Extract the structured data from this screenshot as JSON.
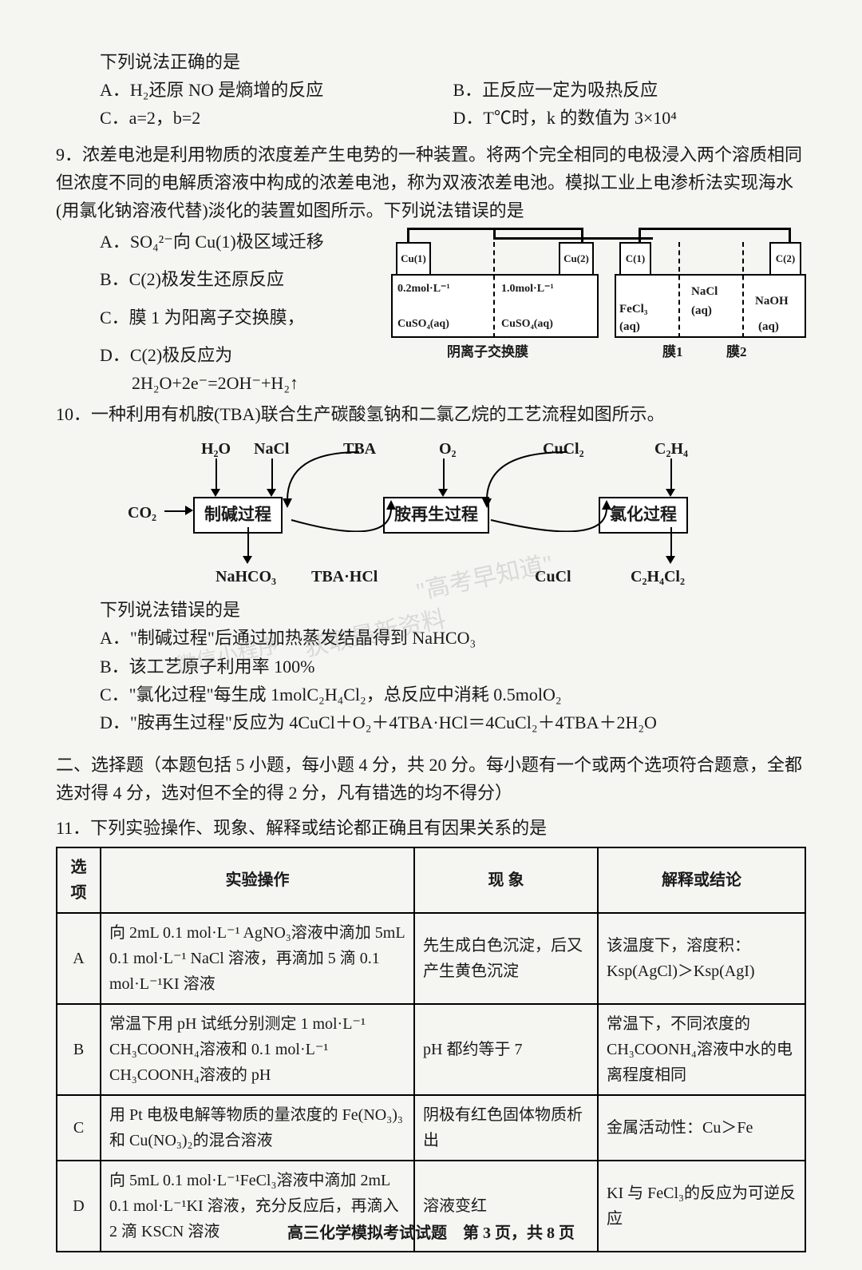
{
  "pre": {
    "line1": "下列说法正确的是",
    "optA": "A．H₂还原 NO 是熵增的反应",
    "optB": "B．正反应一定为吸热反应",
    "optC": "C．a=2，b=2",
    "optD": "D．T℃时，k 的数值为 3×10⁴"
  },
  "q9": {
    "stem": "9．浓差电池是利用物质的浓度差产生电势的一种装置。将两个完全相同的电极浸入两个溶质相同但浓度不同的电解质溶液中构成的浓差电池，称为双液浓差电池。模拟工业上电渗析法实现海水(用氯化钠溶液代替)淡化的装置如图所示。下列说法错误的是",
    "optA": "A．SO₄²⁻向 Cu(1)极区域迁移",
    "optB": "B．C(2)极发生还原反应",
    "optC": "C．膜 1 为阳离子交换膜，",
    "optD": "D．C(2)极反应为",
    "optD2": "2H₂O+2e⁻=2OH⁻+H₂↑",
    "diagram": {
      "cu1": "Cu(1)",
      "cu2": "Cu(2)",
      "c1": "C(1)",
      "c2": "C(2)",
      "conc1": "0.2mol·L⁻¹",
      "conc2": "1.0mol·L⁻¹",
      "sol1": "CuSO₄(aq)",
      "sol2": "CuSO₄(aq)",
      "fecl3": "FeCl₃",
      "aq1": "(aq)",
      "nacl": "NaCl",
      "aq2": "(aq)",
      "naoh": "NaOH",
      "aq3": "(aq)",
      "anion_mem": "阴离子交换膜",
      "mem1": "膜1",
      "mem2": "膜2"
    }
  },
  "q10": {
    "stem": "10．一种利用有机胺(TBA)联合生产碳酸氢钠和二氯乙烷的工艺流程如图所示。",
    "prompt": "下列说法错误的是",
    "optA": "A．\"制碱过程\"后通过加热蒸发结晶得到 NaHCO₃",
    "optB": "B．该工艺原子利用率 100%",
    "optC": "C．\"氯化过程\"每生成 1molC₂H₄Cl₂，总反应中消耗 0.5molO₂",
    "optD": "D．\"胺再生过程\"反应为 4CuCl＋O₂＋4TBA·HCl＝4CuCl₂＋4TBA＋2H₂O",
    "labels": {
      "h2o": "H₂O",
      "nacl": "NaCl",
      "tba": "TBA",
      "o2": "O₂",
      "cucl2": "CuCl₂",
      "c2h4": "C₂H₄",
      "co2": "CO₂",
      "box1": "制碱过程",
      "box2": "胺再生过程",
      "box3": "氯化过程",
      "nahco3": "NaHCO₃",
      "tbahcl": "TBA·HCl",
      "cucl": "CuCl",
      "c2h4cl2": "C₂H₄Cl₂"
    }
  },
  "section2": {
    "heading": "二、选择题（本题包括 5 小题，每小题 4 分，共 20 分。每小题有一个或两个选项符合题意，全都选对得 4 分，选对但不全的得 2 分，凡有错选的均不得分）"
  },
  "q11": {
    "stem": "11．下列实验操作、现象、解释或结论都正确且有因果关系的是",
    "headers": {
      "opt": "选项",
      "op": "实验操作",
      "ph": "现 象",
      "ex": "解释或结论"
    },
    "rows": [
      {
        "opt": "A",
        "op": "向 2mL 0.1 mol·L⁻¹ AgNO₃溶液中滴加 5mL 0.1 mol·L⁻¹ NaCl 溶液，再滴加 5 滴 0.1 mol·L⁻¹KI 溶液",
        "ph": "先生成白色沉淀，后又产生黄色沉淀",
        "ex": "该温度下，溶度积：Ksp(AgCl)＞Ksp(AgI)"
      },
      {
        "opt": "B",
        "op": "常温下用 pH 试纸分别测定 1 mol·L⁻¹ CH₃COONH₄溶液和 0.1 mol·L⁻¹ CH₃COONH₄溶液的 pH",
        "ph": "pH 都约等于 7",
        "ex": "常温下，不同浓度的 CH₃COONH₄溶液中水的电离程度相同"
      },
      {
        "opt": "C",
        "op": "用 Pt 电极电解等物质的量浓度的 Fe(NO₃)₃和 Cu(NO₃)₂的混合溶液",
        "ph": "阴极有红色固体物质析出",
        "ex": "金属活动性：Cu＞Fe"
      },
      {
        "opt": "D",
        "op": "向 5mL 0.1 mol·L⁻¹FeCl₃溶液中滴加 2mL 0.1 mol·L⁻¹KI 溶液，充分反应后，再滴入 2 滴 KSCN 溶液",
        "ph": "溶液变红",
        "ex": "KI 与 FeCl₃的反应为可逆反应"
      }
    ]
  },
  "footer": "高三化学模拟考试试题　第 3 页，共 8 页",
  "watermarks": {
    "w1": "\"高考早知道\"",
    "w2": "获取最新资料",
    "w3": "微信小程序"
  }
}
